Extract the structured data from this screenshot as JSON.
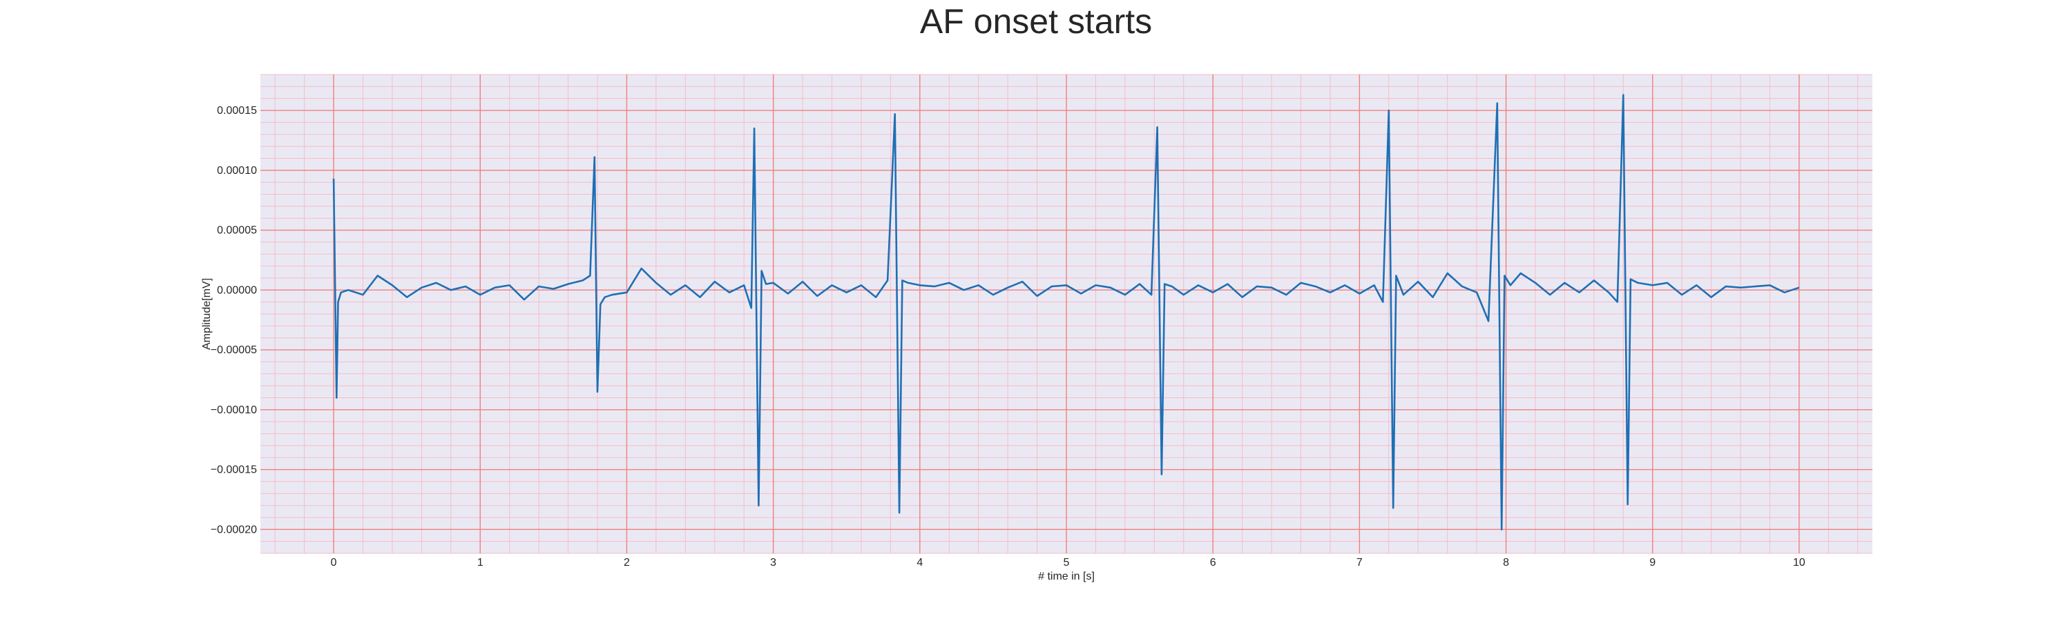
{
  "chart_data": {
    "type": "line",
    "title": "AF onset starts",
    "xlabel": "# time in [s]",
    "ylabel": "Amplitude[mV]",
    "xlim": [
      -0.5,
      10.5
    ],
    "ylim": [
      -0.00022,
      0.00018
    ],
    "x_ticks": [
      0,
      1,
      2,
      3,
      4,
      5,
      6,
      7,
      8,
      9,
      10
    ],
    "y_ticks": [
      0.00015,
      0.0001,
      5e-05,
      0.0,
      -5e-05,
      -0.0001,
      -0.00015,
      -0.0002
    ],
    "y_tick_labels": [
      "0.00015",
      "0.00010",
      "0.00005",
      "0.00000",
      "−0.00005",
      "−0.00010",
      "−0.00015",
      "−0.00020"
    ],
    "grid": "major and minor",
    "colors": {
      "line": "#1f6fb4",
      "background": "#eae9f3",
      "major_grid": "#f08080",
      "minor_grid": "#f6bcc8"
    },
    "r_peaks": [
      {
        "t": 0.0,
        "peak": 9.3e-05,
        "trough": -9e-05
      },
      {
        "t": 1.78,
        "peak": 0.000111,
        "trough": -8.5e-05
      },
      {
        "t": 2.87,
        "peak": 0.000135,
        "trough": -0.00018
      },
      {
        "t": 3.83,
        "peak": 0.000147,
        "trough": -0.000186
      },
      {
        "t": 5.62,
        "peak": 0.000136,
        "trough": -0.000154
      },
      {
        "t": 7.2,
        "peak": 0.00015,
        "trough": -0.000182
      },
      {
        "t": 7.94,
        "peak": 0.000156,
        "trough": -0.0002
      },
      {
        "t": 8.8,
        "peak": 0.000163,
        "trough": -0.000179
      }
    ],
    "series": [
      {
        "x": [
          0.0,
          0.02,
          0.03,
          0.05,
          0.1,
          0.2,
          0.3,
          0.4,
          0.5,
          0.6,
          0.7,
          0.8,
          0.9,
          1.0,
          1.1,
          1.2,
          1.3,
          1.4,
          1.5,
          1.6,
          1.7,
          1.75,
          1.78,
          1.8,
          1.82,
          1.85,
          1.9,
          2.0,
          2.1,
          2.2,
          2.3,
          2.4,
          2.5,
          2.6,
          2.7,
          2.8,
          2.85,
          2.87,
          2.9,
          2.92,
          2.95,
          3.0,
          3.1,
          3.2,
          3.3,
          3.4,
          3.5,
          3.6,
          3.7,
          3.78,
          3.83,
          3.86,
          3.88,
          3.92,
          4.0,
          4.1,
          4.2,
          4.3,
          4.4,
          4.5,
          4.6,
          4.7,
          4.8,
          4.9,
          5.0,
          5.1,
          5.2,
          5.3,
          5.4,
          5.5,
          5.58,
          5.62,
          5.65,
          5.67,
          5.72,
          5.8,
          5.9,
          6.0,
          6.1,
          6.2,
          6.3,
          6.4,
          6.5,
          6.6,
          6.7,
          6.8,
          6.9,
          7.0,
          7.1,
          7.16,
          7.2,
          7.23,
          7.25,
          7.3,
          7.4,
          7.5,
          7.6,
          7.7,
          7.8,
          7.88,
          7.94,
          7.97,
          7.99,
          8.03,
          8.1,
          8.2,
          8.3,
          8.4,
          8.5,
          8.6,
          8.7,
          8.76,
          8.8,
          8.83,
          8.85,
          8.9,
          9.0,
          9.1,
          9.2,
          9.3,
          9.4,
          9.5,
          9.6,
          9.7,
          9.8,
          9.9,
          10.0
        ],
        "y": [
          9.3e-05,
          -9e-05,
          -1e-05,
          -2e-06,
          0.0,
          -4e-06,
          1.2e-05,
          4e-06,
          -6e-06,
          2e-06,
          6e-06,
          0.0,
          3e-06,
          -4e-06,
          2e-06,
          4e-06,
          -8e-06,
          3e-06,
          1e-06,
          5e-06,
          8e-06,
          1.2e-05,
          0.000111,
          -8.5e-05,
          -1.2e-05,
          -6e-06,
          -4e-06,
          -2e-06,
          1.8e-05,
          6e-06,
          -4e-06,
          4e-06,
          -6e-06,
          7e-06,
          -2e-06,
          4e-06,
          -1.5e-05,
          0.000135,
          -0.00018,
          1.6e-05,
          5e-06,
          6e-06,
          -3e-06,
          7e-06,
          -5e-06,
          4e-06,
          -2e-06,
          4e-06,
          -6e-06,
          8e-06,
          0.000147,
          -0.000186,
          8e-06,
          6e-06,
          4e-06,
          3e-06,
          6e-06,
          0.0,
          4e-06,
          -4e-06,
          2e-06,
          7e-06,
          -5e-06,
          3e-06,
          4e-06,
          -3e-06,
          4e-06,
          2e-06,
          -4e-06,
          5e-06,
          -4e-06,
          0.000136,
          -0.000154,
          5e-06,
          3e-06,
          -4e-06,
          4e-06,
          -2e-06,
          5e-06,
          -6e-06,
          3e-06,
          2e-06,
          -4e-06,
          6e-06,
          3e-06,
          -2e-06,
          4e-06,
          -3e-06,
          4e-06,
          -1e-05,
          0.00015,
          -0.000182,
          1.2e-05,
          -4e-06,
          7e-06,
          -6e-06,
          1.4e-05,
          3e-06,
          -2e-06,
          -2.6e-05,
          0.000156,
          -0.0002,
          1.2e-05,
          4e-06,
          1.4e-05,
          6e-06,
          -4e-06,
          6e-06,
          -2e-06,
          8e-06,
          -2e-06,
          -1e-05,
          0.000163,
          -0.000179,
          9e-06,
          6e-06,
          4e-06,
          6e-06,
          -4e-06,
          4e-06,
          -6e-06,
          3e-06,
          2e-06,
          3e-06,
          4e-06,
          -2e-06,
          2e-06
        ]
      }
    ]
  }
}
